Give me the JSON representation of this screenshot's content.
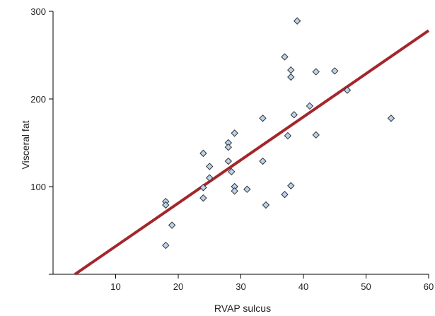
{
  "chart_data": {
    "type": "scatter",
    "title": "",
    "xlabel": "RVAP sulcus",
    "ylabel": "Visceral fat",
    "xlim": [
      0,
      60
    ],
    "ylim": [
      0,
      300
    ],
    "x_ticks": [
      10,
      20,
      30,
      40,
      50,
      60
    ],
    "y_ticks": [
      100,
      200,
      300
    ],
    "grid": false,
    "legend": "none",
    "colors": {
      "marker_fill": "#b9d3ee",
      "marker_stroke": "#333333",
      "trend_line": "#a4262c",
      "axis": "#000000"
    },
    "series": [
      {
        "values": [
          {
            "x": 18.0,
            "y": 83
          },
          {
            "x": 18.0,
            "y": 79
          },
          {
            "x": 18.0,
            "y": 33
          },
          {
            "x": 19.0,
            "y": 56
          },
          {
            "x": 24.0,
            "y": 138
          },
          {
            "x": 24.0,
            "y": 99
          },
          {
            "x": 24.0,
            "y": 87
          },
          {
            "x": 25.0,
            "y": 123
          },
          {
            "x": 25.0,
            "y": 110
          },
          {
            "x": 28.0,
            "y": 150
          },
          {
            "x": 28.0,
            "y": 145
          },
          {
            "x": 28.0,
            "y": 129
          },
          {
            "x": 28.5,
            "y": 117
          },
          {
            "x": 29.0,
            "y": 161
          },
          {
            "x": 29.0,
            "y": 100
          },
          {
            "x": 29.0,
            "y": 95
          },
          {
            "x": 31.0,
            "y": 97
          },
          {
            "x": 33.5,
            "y": 178
          },
          {
            "x": 33.5,
            "y": 129
          },
          {
            "x": 34.0,
            "y": 79
          },
          {
            "x": 37.0,
            "y": 248
          },
          {
            "x": 37.0,
            "y": 91
          },
          {
            "x": 37.5,
            "y": 158
          },
          {
            "x": 38.0,
            "y": 233
          },
          {
            "x": 38.0,
            "y": 225
          },
          {
            "x": 38.0,
            "y": 101
          },
          {
            "x": 38.5,
            "y": 182
          },
          {
            "x": 39.0,
            "y": 289
          },
          {
            "x": 41.0,
            "y": 192
          },
          {
            "x": 42.0,
            "y": 231
          },
          {
            "x": 42.0,
            "y": 159
          },
          {
            "x": 45.0,
            "y": 232
          },
          {
            "x": 47.0,
            "y": 210
          },
          {
            "x": 54.0,
            "y": 178
          }
        ]
      }
    ],
    "trend_line": {
      "x": [
        3.5,
        60
      ],
      "y": [
        0,
        278
      ]
    }
  }
}
